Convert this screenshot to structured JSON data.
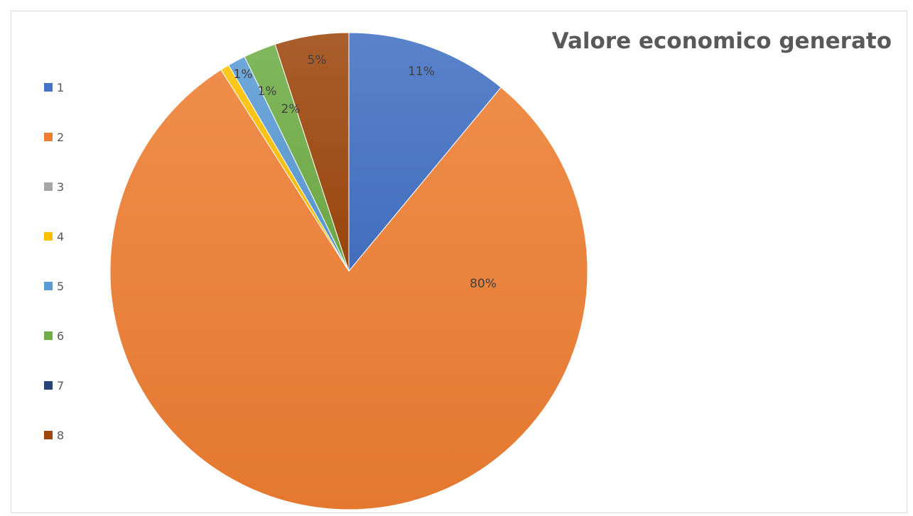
{
  "chart_data": {
    "type": "pie",
    "title": "Valore economico generato",
    "categories": [
      "1",
      "2",
      "3",
      "4",
      "5",
      "6",
      "7",
      "8"
    ],
    "values": [
      11,
      80,
      0,
      0.6,
      1.2,
      2.2,
      0,
      5
    ],
    "data_labels": [
      "11%",
      "80%",
      "",
      "1%",
      "1%",
      "2%",
      "",
      "5%"
    ],
    "colors": [
      "#4472c4",
      "#ed7d31",
      "#a5a5a5",
      "#ffc000",
      "#5b9bd5",
      "#70ad47",
      "#264478",
      "#9e480e"
    ],
    "legend_position": "left"
  }
}
